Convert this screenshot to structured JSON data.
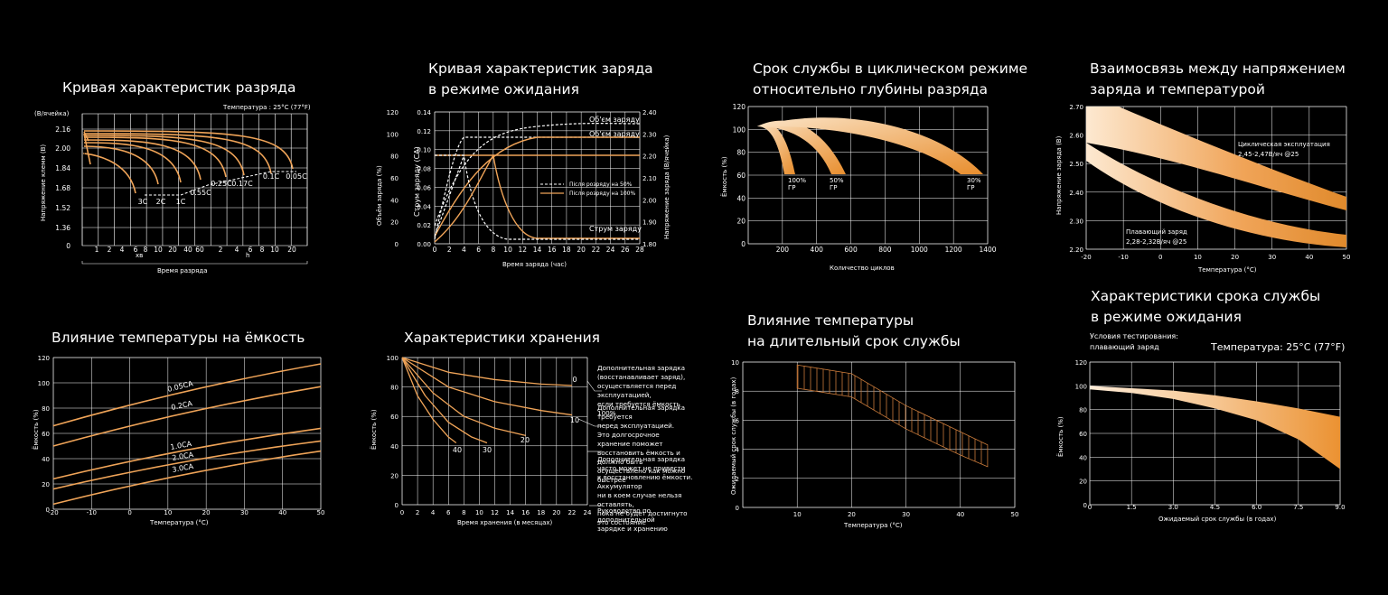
{
  "colors": {
    "background": "#000000",
    "orange": "#f0a458",
    "grid": "#ffffff",
    "white_dashed": "#ffffff"
  },
  "charts": [
    {
      "title": "Кривая характеристик разряда",
      "subtitle": "Температура : 25°C (77°F)",
      "ylabel": "Напряжение клемм (В)",
      "yunit": "(В/ячейка)",
      "xlabel": "Время разряда",
      "yticks": [
        "2.16",
        "2.00",
        "1.84",
        "1.68",
        "1.52",
        "1.36",
        "0"
      ],
      "xticks": [
        "1",
        "2",
        "4",
        "6",
        "8",
        "10",
        "20",
        "40",
        "60",
        "2",
        "4",
        "6",
        "8",
        "10",
        "20"
      ],
      "xunit_min": "хв",
      "xunit_h": "h",
      "curve_labels": [
        "3C",
        "2C",
        "1C",
        "0.55C",
        "0.25C",
        "0.17C",
        "0.1C",
        "0.05C"
      ]
    },
    {
      "title": "Кривая характеристик заряда\nв режиме ожидания",
      "ylabel_left1": "Объём заряда (%)",
      "ylabel_left2": "Струм заряду (CA)",
      "ylabel_right": "Напряжение заряда (В/ячейка)",
      "xlabel": "Время заряда (час)",
      "yticks_pct": [
        "120",
        "100",
        "80",
        "60",
        "40",
        "20",
        "0"
      ],
      "yticks_ca": [
        "0.14",
        "0.12",
        "0.10",
        "0.08",
        "0.06",
        "0.04",
        "0.02",
        "0.00"
      ],
      "yticks_v": [
        "2.40",
        "2.30",
        "2.20",
        "2.10",
        "2.00",
        "1.90",
        "1.80"
      ],
      "xticks": [
        "0",
        "2",
        "4",
        "6",
        "8",
        "10",
        "12",
        "14",
        "16",
        "18",
        "20",
        "22",
        "24",
        "26",
        "28"
      ],
      "curve_labels": [
        "Об'єм заряду",
        "Об'єм заряду",
        "Струм заряду"
      ],
      "legend": [
        "Після розряду на 50%",
        "Після розряду на 100%"
      ]
    },
    {
      "title": "Срок службы в циклическом режиме\nотносительно глубины разряда",
      "ylabel": "Ёмкость (%)",
      "xlabel": "Количество циклов",
      "yticks": [
        "120",
        "100",
        "80",
        "60",
        "40",
        "20",
        "0"
      ],
      "xticks": [
        "200",
        "400",
        "600",
        "800",
        "1000",
        "1200",
        "1400"
      ],
      "band_labels": [
        {
          "pct": "100%",
          "gr": "ГР"
        },
        {
          "pct": "50%",
          "gr": "ГР"
        },
        {
          "pct": "30%",
          "gr": "ГР"
        }
      ]
    },
    {
      "title": "Взаимосвязь между напряжением\nзаряда и температурой",
      "ylabel": "Напряжение заряда (В)",
      "xlabel": "Температура (°C)",
      "yticks": [
        "2.70",
        "2.60",
        "2.50",
        "2.40",
        "2.30",
        "2.20"
      ],
      "xticks": [
        "-20",
        "-10",
        "0",
        "10",
        "20",
        "30",
        "40",
        "50"
      ],
      "cyclic_label": "Циклическая эксплуатация",
      "cyclic_range": "2,45-2,47В/яч @25",
      "float_label": "Плавающий заряд",
      "float_range": "2,28-2,32В/яч @25"
    },
    {
      "title": "Влияние температуры на ёмкость",
      "ylabel": "Ёмкость (%)",
      "xlabel": "Температура (°C)",
      "yticks": [
        "120",
        "100",
        "80",
        "60",
        "40",
        "20",
        "0"
      ],
      "xticks": [
        "-20",
        "-10",
        "0",
        "10",
        "20",
        "30",
        "40",
        "50"
      ],
      "curve_labels": [
        "0.05CA",
        "0.2CA",
        "1.0CA",
        "2.0CA",
        "3.0CA"
      ]
    },
    {
      "title": "Характеристики хранения",
      "ylabel": "Ёмкость (%)",
      "xlabel": "Время хранения (в месяцах)",
      "yticks": [
        "100",
        "80",
        "60",
        "40",
        "20",
        "0"
      ],
      "xticks": [
        "0",
        "2",
        "4",
        "6",
        "8",
        "10",
        "12",
        "14",
        "16",
        "18",
        "20",
        "22",
        "24"
      ],
      "curve_labels": [
        "0",
        "10",
        "20",
        "30",
        "40"
      ],
      "notes": [
        "Дополнительная зарядка\n(восстанавливает заряд),\nосуществляется перед эксплуатацией,\nесли требуется ёмкость 100%",
        "Дополнительная зарядка требуется\nперед эксплуатацией.\nЭто долгосрочное хранение поможет\nвосстановить ёмкость и должно быть\nосуществлено как можно быстрее",
        "Дополнительная зарядка\nчасто может не привести\nк восстановлению ёмкости. Аккумулятор\nни в коем случае нельзя оставлять,\nпока не будет достигнуто это состояние",
        "Руководство по дополнительной\nзарядке и хранению"
      ]
    },
    {
      "title": "Влияние температуры\nна длительный срок службы",
      "ylabel": "Ожидаемый срок службы (в годах)",
      "xlabel": "Температура (°C)",
      "yticks": [
        "10",
        "8",
        "6",
        "4",
        "2",
        "0"
      ],
      "xticks": [
        "10",
        "20",
        "30",
        "40",
        "50"
      ]
    },
    {
      "title": "Характеристики срока службы\nв режиме ожидания",
      "test_cond": "Условия тестирования:\n плавающий заряд",
      "temp": "Температура: 25°C (77°F)",
      "ylabel": "Ёмкость (%)",
      "xlabel": "Ожидаемый срок службы (в годах)",
      "yticks": [
        "120",
        "100",
        "80",
        "60",
        "40",
        "20",
        "0"
      ],
      "xticks": [
        "0",
        "1.5",
        "3.0",
        "4.5",
        "6.0",
        "7.5",
        "9.0"
      ]
    }
  ],
  "chart_data": [
    {
      "type": "line",
      "title": "Кривая характеристик разряда",
      "xlabel": "Время разряда",
      "ylabel": "Напряжение клемм (В)",
      "series": [
        {
          "name": "3C",
          "end_voltage": 1.6
        },
        {
          "name": "2C",
          "end_voltage": 1.6
        },
        {
          "name": "1C",
          "end_voltage": 1.6
        },
        {
          "name": "0.55C",
          "end_voltage": 1.65
        },
        {
          "name": "0.25C",
          "end_voltage": 1.7
        },
        {
          "name": "0.17C",
          "end_voltage": 1.7
        },
        {
          "name": "0.1C",
          "end_voltage": 1.75
        },
        {
          "name": "0.05C",
          "end_voltage": 1.75
        }
      ]
    },
    {
      "type": "line",
      "title": "Кривая характеристик заряда в режиме ожидания",
      "xlabel": "Время заряда (час)",
      "x": [
        0,
        2,
        4,
        6,
        8,
        10,
        12,
        14,
        16,
        18,
        20,
        22,
        24,
        26,
        28
      ],
      "series": [
        {
          "name": "Після розряду на 50%",
          "values": [
            0,
            70,
            96,
            100,
            102,
            103,
            104,
            104,
            105,
            105,
            105,
            106,
            106,
            106,
            106
          ]
        },
        {
          "name": "Після розряду на 100%",
          "values": [
            0,
            30,
            55,
            72,
            86,
            94,
            98,
            100,
            100,
            100,
            100,
            100,
            100,
            100,
            100
          ]
        }
      ]
    },
    {
      "type": "area",
      "title": "Срок службы в циклическом режиме относительно глубины разряда",
      "xlabel": "Количество циклов",
      "ylabel": "Ёмкость (%)",
      "series": [
        {
          "name": "100% ГР",
          "end_cycles": [
            200,
            260
          ]
        },
        {
          "name": "50% ГР",
          "end_cycles": [
            420,
            530
          ]
        },
        {
          "name": "30% ГР",
          "end_cycles": [
            1200,
            1400
          ]
        }
      ]
    },
    {
      "type": "area",
      "title": "Взаимосвязь между напряжением заряда и температурой",
      "xlabel": "Температура (°C)",
      "ylabel": "Напряжение заряда (В)",
      "x": [
        -20,
        50
      ],
      "series": [
        {
          "name": "Циклическая эксплуатация",
          "upper": [
            2.78,
            2.4
          ],
          "lower": [
            2.66,
            2.34
          ]
        },
        {
          "name": "Плавающий заряд",
          "upper": [
            2.56,
            2.25
          ],
          "lower": [
            2.5,
            2.21
          ]
        }
      ]
    },
    {
      "type": "line",
      "title": "Влияние температуры на ёмкость",
      "xlabel": "Температура (°C)",
      "ylabel": "Ёмкость (%)",
      "x": [
        -20,
        50
      ],
      "series": [
        {
          "name": "0.05CA",
          "values": [
            66,
            115
          ]
        },
        {
          "name": "0.2CA",
          "values": [
            50,
            97
          ]
        },
        {
          "name": "1.0CA",
          "values": [
            24,
            64
          ]
        },
        {
          "name": "2.0CA",
          "values": [
            16,
            54
          ]
        },
        {
          "name": "3.0CA",
          "values": [
            4,
            46
          ]
        }
      ]
    },
    {
      "type": "line",
      "title": "Характеристики хранения",
      "xlabel": "Время хранения (в месяцах)",
      "ylabel": "Ёмкость (%)",
      "series": [
        {
          "name": "0",
          "points": [
            [
              0,
              100
            ],
            [
              6,
              90
            ],
            [
              12,
              85
            ],
            [
              18,
              82
            ],
            [
              22,
              81
            ]
          ]
        },
        {
          "name": "10",
          "points": [
            [
              0,
              100
            ],
            [
              6,
              80
            ],
            [
              12,
              70
            ],
            [
              18,
              64
            ],
            [
              22,
              61
            ]
          ]
        },
        {
          "name": "20",
          "points": [
            [
              0,
              100
            ],
            [
              4,
              76
            ],
            [
              8,
              60
            ],
            [
              12,
              52
            ],
            [
              16,
              47
            ]
          ]
        },
        {
          "name": "30",
          "points": [
            [
              0,
              100
            ],
            [
              3,
              74
            ],
            [
              6,
              56
            ],
            [
              9,
              46
            ],
            [
              11,
              42
            ]
          ]
        },
        {
          "name": "40",
          "points": [
            [
              0,
              100
            ],
            [
              2,
              74
            ],
            [
              4,
              58
            ],
            [
              6,
              46
            ],
            [
              7,
              42
            ]
          ]
        }
      ]
    },
    {
      "type": "area",
      "title": "Влияние температуры на длительный срок службы",
      "xlabel": "Температура (°C)",
      "ylabel": "Ожидаемый срок службы (в годах)",
      "x": [
        10,
        20,
        30,
        40,
        45
      ],
      "upper": [
        9.8,
        9.2,
        7.0,
        5.2,
        4.3
      ],
      "lower": [
        8.2,
        7.6,
        5.4,
        3.6,
        2.8
      ]
    },
    {
      "type": "area",
      "title": "Характеристики срока службы в режиме ожидания",
      "xlabel": "Ожидаемый срок службы (в годах)",
      "ylabel": "Ёмкость (%)",
      "x": [
        0,
        1.5,
        3.0,
        4.5,
        6.0,
        7.5,
        9.0
      ],
      "upper": [
        100,
        98,
        96,
        92,
        87,
        81,
        74
      ],
      "lower": [
        97,
        94,
        89,
        81,
        71,
        55,
        30
      ]
    }
  ]
}
